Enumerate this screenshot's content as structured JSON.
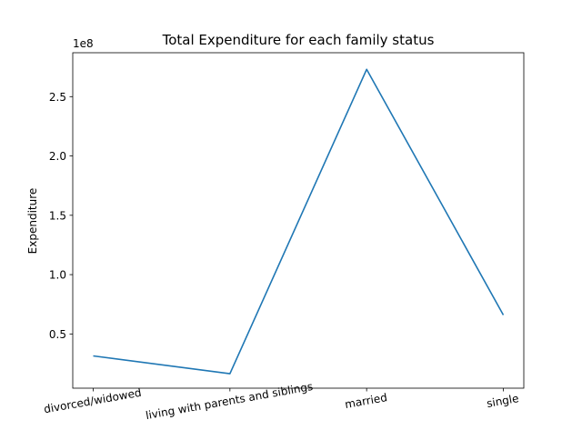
{
  "chart_data": {
    "type": "line",
    "title": "Total Expenditure for each family status",
    "xlabel": "",
    "ylabel": "Expenditure",
    "y_scale_label": "1e8",
    "categories": [
      "divorced/widowed",
      "living with parents and siblings",
      "married",
      "single"
    ],
    "series": [
      {
        "values": [
          31500000,
          16500000,
          273000000,
          66000000
        ],
        "color": "#1f77b4"
      }
    ],
    "ylim": [
      4300000,
      287000000
    ],
    "y_ticks": [
      50000000.0,
      100000000.0,
      150000000.0,
      200000000.0,
      250000000.0
    ],
    "y_tick_labels": [
      "0.5",
      "1.0",
      "1.5",
      "2.0",
      "2.5"
    ],
    "grid": false,
    "legend": "none"
  }
}
